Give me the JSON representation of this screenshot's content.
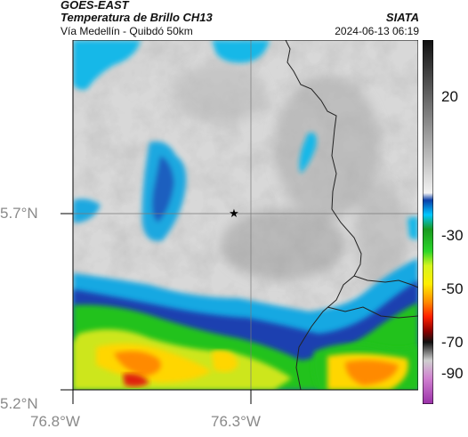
{
  "header": {
    "satellite": "GOES-EAST",
    "product": "Temperatura de Brillo CH13",
    "region": "Vía Medellín - Quibdó 50km",
    "org": "SIATA",
    "datetime": "2024-06-13 06:19"
  },
  "map": {
    "lat_labels": [
      "5.7°N",
      "5.2°N"
    ],
    "lon_labels": [
      "76.8°W",
      "76.3°W"
    ],
    "marker": "star-icon"
  },
  "colorbar": {
    "ticks": [
      "20",
      "-30",
      "-50",
      "-70",
      "-90"
    ],
    "colors": {
      "warm": "#2a2a2a",
      "cold_cyan": "#00bfff",
      "green": "#22c21f",
      "yellow": "#ffee00",
      "red": "#ff2000",
      "magenta": "#b040c0"
    }
  }
}
